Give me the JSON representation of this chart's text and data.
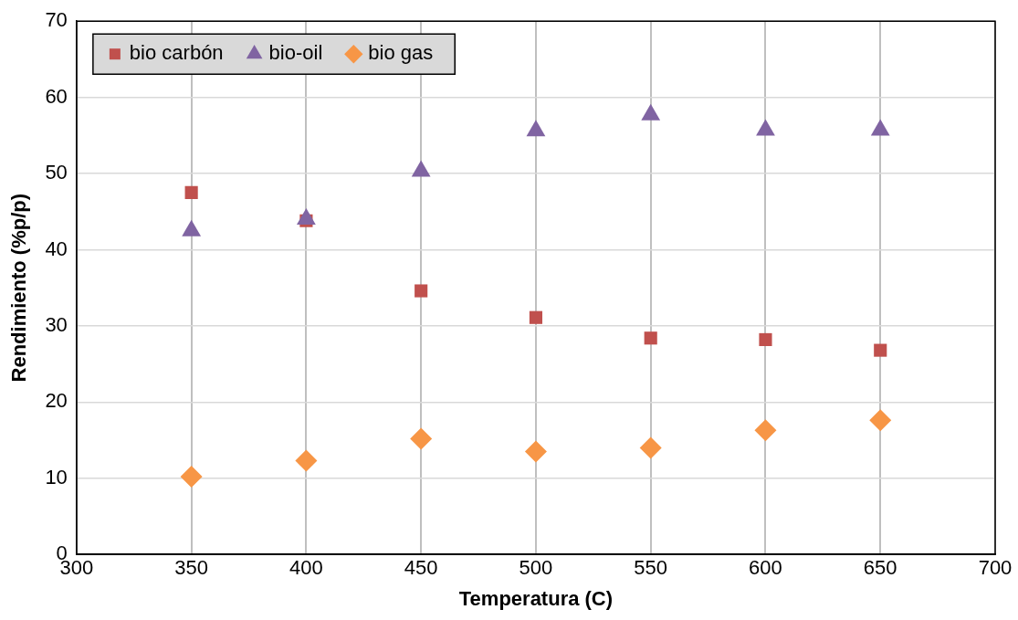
{
  "chart_data": {
    "type": "scatter",
    "xlabel": "Temperatura (C)",
    "ylabel": "Rendimiento (%p/p)",
    "x": [
      350,
      400,
      450,
      500,
      550,
      600,
      650
    ],
    "series": [
      {
        "name": "bio carbón",
        "color": "#c0504d",
        "marker": "square",
        "values": [
          47.5,
          43.8,
          34.6,
          31.1,
          28.4,
          28.2,
          26.8
        ]
      },
      {
        "name": "bio-oil",
        "color": "#8064a2",
        "marker": "triangle",
        "values": [
          42.5,
          44.0,
          50.3,
          55.6,
          57.7,
          55.7,
          55.7
        ]
      },
      {
        "name": "bio gas",
        "color": "#f79646",
        "marker": "diamond",
        "values": [
          10.2,
          12.3,
          15.2,
          13.5,
          14.0,
          16.3,
          17.6
        ]
      }
    ],
    "xlim": [
      300,
      700
    ],
    "xticks": [
      300,
      350,
      400,
      450,
      500,
      550,
      600,
      650,
      700
    ],
    "ylim": [
      0,
      70
    ],
    "yticks": [
      0,
      10,
      20,
      30,
      40,
      50,
      60,
      70
    ],
    "grid": true,
    "legend": "top left"
  }
}
